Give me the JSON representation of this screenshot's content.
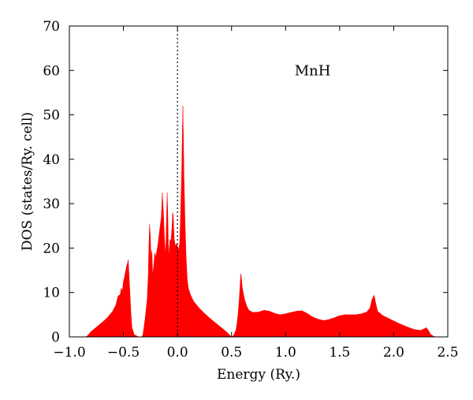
{
  "chart_data": {
    "type": "area",
    "xlabel": "Energy (Ry.)",
    "ylabel": "DOS (states/Ry. cell)",
    "annotation": "MnH",
    "xlim": [
      -1.0,
      2.5
    ],
    "ylim": [
      0,
      70
    ],
    "x_ticks": [
      -1.0,
      -0.5,
      0.0,
      0.5,
      1.0,
      1.5,
      2.0,
      2.5
    ],
    "x_tick_labels": [
      "−1.0",
      "−0.5",
      "0.0",
      "0.5",
      "1.0",
      "1.5",
      "2.0",
      "2.5"
    ],
    "y_ticks": [
      0,
      10,
      20,
      30,
      40,
      50,
      60,
      70
    ],
    "y_tick_labels": [
      "0",
      "10",
      "20",
      "30",
      "40",
      "50",
      "60",
      "70"
    ],
    "fermi_level": 0.0,
    "grid": false,
    "series": [
      {
        "color": "#ff0000",
        "points": [
          [
            -0.95,
            0
          ],
          [
            -0.85,
            0
          ],
          [
            -0.83,
            0.3
          ],
          [
            -0.8,
            1.2
          ],
          [
            -0.75,
            2.2
          ],
          [
            -0.7,
            3.2
          ],
          [
            -0.65,
            4.3
          ],
          [
            -0.6,
            5.8
          ],
          [
            -0.57,
            7.2
          ],
          [
            -0.55,
            9.2
          ],
          [
            -0.53,
            9.5
          ],
          [
            -0.52,
            11.0
          ],
          [
            -0.51,
            10.2
          ],
          [
            -0.5,
            12.5
          ],
          [
            -0.49,
            13.5
          ],
          [
            -0.48,
            14.8
          ],
          [
            -0.47,
            16.0
          ],
          [
            -0.46,
            16.8
          ],
          [
            -0.455,
            17.4
          ],
          [
            -0.45,
            15.0
          ],
          [
            -0.44,
            10.0
          ],
          [
            -0.43,
            5.0
          ],
          [
            -0.42,
            2.0
          ],
          [
            -0.4,
            0.5
          ],
          [
            -0.36,
            0
          ],
          [
            -0.33,
            0
          ],
          [
            -0.32,
            0.5
          ],
          [
            -0.3,
            4.0
          ],
          [
            -0.28,
            8.5
          ],
          [
            -0.27,
            14.0
          ],
          [
            -0.265,
            20.0
          ],
          [
            -0.258,
            25.5
          ],
          [
            -0.25,
            22.0
          ],
          [
            -0.245,
            17.0
          ],
          [
            -0.24,
            19.5
          ],
          [
            -0.235,
            18.5
          ],
          [
            -0.23,
            14.0
          ],
          [
            -0.22,
            16.0
          ],
          [
            -0.21,
            19.0
          ],
          [
            -0.2,
            18.0
          ],
          [
            -0.18,
            21.0
          ],
          [
            -0.17,
            23.0
          ],
          [
            -0.16,
            25.0
          ],
          [
            -0.15,
            27.0
          ],
          [
            -0.14,
            32.5
          ],
          [
            -0.135,
            30.0
          ],
          [
            -0.13,
            28.0
          ],
          [
            -0.12,
            22.0
          ],
          [
            -0.11,
            18.0
          ],
          [
            -0.1,
            28.0
          ],
          [
            -0.095,
            32.5
          ],
          [
            -0.09,
            28.0
          ],
          [
            -0.085,
            21.0
          ],
          [
            -0.08,
            18.0
          ],
          [
            -0.07,
            22.0
          ],
          [
            -0.06,
            21.5
          ],
          [
            -0.05,
            25.0
          ],
          [
            -0.045,
            28.0
          ],
          [
            -0.04,
            27.5
          ],
          [
            -0.03,
            22.0
          ],
          [
            -0.02,
            20.5
          ],
          [
            -0.01,
            21.0
          ],
          [
            0.0,
            20.5
          ],
          [
            0.01,
            19.5
          ],
          [
            0.02,
            21.0
          ],
          [
            0.03,
            29.0
          ],
          [
            0.04,
            38.0
          ],
          [
            0.045,
            46.0
          ],
          [
            0.05,
            52.0
          ],
          [
            0.055,
            44.0
          ],
          [
            0.06,
            36.0
          ],
          [
            0.07,
            26.0
          ],
          [
            0.08,
            18.0
          ],
          [
            0.09,
            13.0
          ],
          [
            0.1,
            11.0
          ],
          [
            0.12,
            9.5
          ],
          [
            0.15,
            8.0
          ],
          [
            0.2,
            6.5
          ],
          [
            0.25,
            5.3
          ],
          [
            0.3,
            4.2
          ],
          [
            0.35,
            3.2
          ],
          [
            0.4,
            2.2
          ],
          [
            0.45,
            1.2
          ],
          [
            0.48,
            0.5
          ],
          [
            0.5,
            0
          ],
          [
            0.52,
            0.4
          ],
          [
            0.54,
            1.5
          ],
          [
            0.55,
            3.0
          ],
          [
            0.56,
            5.0
          ],
          [
            0.57,
            8.0
          ],
          [
            0.58,
            12.0
          ],
          [
            0.585,
            14.2
          ],
          [
            0.59,
            13.5
          ],
          [
            0.6,
            11.0
          ],
          [
            0.62,
            8.5
          ],
          [
            0.64,
            7.0
          ],
          [
            0.66,
            6.0
          ],
          [
            0.7,
            5.5
          ],
          [
            0.75,
            5.6
          ],
          [
            0.8,
            6.0
          ],
          [
            0.85,
            5.8
          ],
          [
            0.9,
            5.3
          ],
          [
            0.95,
            5.0
          ],
          [
            1.0,
            5.2
          ],
          [
            1.05,
            5.5
          ],
          [
            1.1,
            5.8
          ],
          [
            1.15,
            5.9
          ],
          [
            1.2,
            5.3
          ],
          [
            1.25,
            4.5
          ],
          [
            1.3,
            4.0
          ],
          [
            1.35,
            3.7
          ],
          [
            1.4,
            3.9
          ],
          [
            1.45,
            4.3
          ],
          [
            1.5,
            4.8
          ],
          [
            1.55,
            5.0
          ],
          [
            1.6,
            5.0
          ],
          [
            1.65,
            5.0
          ],
          [
            1.7,
            5.2
          ],
          [
            1.75,
            5.6
          ],
          [
            1.78,
            6.5
          ],
          [
            1.8,
            8.5
          ],
          [
            1.82,
            9.4
          ],
          [
            1.83,
            8.0
          ],
          [
            1.85,
            5.8
          ],
          [
            1.9,
            4.8
          ],
          [
            1.95,
            4.2
          ],
          [
            2.0,
            3.6
          ],
          [
            2.05,
            3.0
          ],
          [
            2.1,
            2.5
          ],
          [
            2.15,
            2.0
          ],
          [
            2.2,
            1.6
          ],
          [
            2.25,
            1.5
          ],
          [
            2.28,
            1.8
          ],
          [
            2.3,
            2.1
          ],
          [
            2.32,
            1.5
          ],
          [
            2.34,
            0.6
          ],
          [
            2.37,
            0.1
          ],
          [
            2.4,
            0
          ]
        ]
      }
    ]
  }
}
